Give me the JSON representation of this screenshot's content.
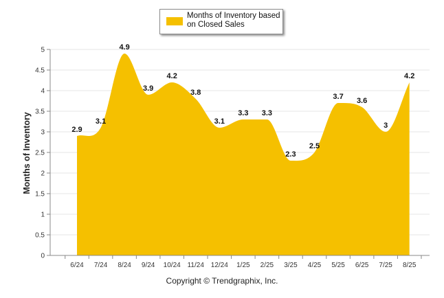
{
  "chart_data": {
    "type": "area",
    "series": [
      {
        "name": "Months of Inventory based on Closed Sales",
        "values": [
          2.9,
          3.1,
          4.9,
          3.9,
          4.2,
          3.8,
          3.1,
          3.3,
          3.3,
          2.3,
          2.5,
          3.7,
          3.6,
          3,
          4.2
        ]
      }
    ],
    "categories": [
      "6/24",
      "7/24",
      "8/24",
      "9/24",
      "10/24",
      "11/24",
      "12/24",
      "1/25",
      "2/25",
      "3/25",
      "4/25",
      "5/25",
      "6/25",
      "7/25",
      "8/25"
    ],
    "data_labels": [
      "2.9",
      "3.1",
      "4.9",
      "3.9",
      "4.2",
      "3.8",
      "3.1",
      "3.3",
      "3.3",
      "2.3",
      "2.5",
      "3.7",
      "3.6",
      "3",
      "4.2"
    ],
    "ylabel": "Months of Inventory",
    "xlabel": "",
    "ylim": [
      0,
      5
    ],
    "yticks": [
      "0",
      "0.5",
      "1",
      "1.5",
      "2",
      "2.5",
      "3",
      "3.5",
      "4",
      "4.5",
      "5"
    ],
    "grid": true,
    "legend_position": "top-center",
    "colors": {
      "series": "#f5c000",
      "grid": "#e6e6e6",
      "axis": "#888888"
    }
  },
  "legend": {
    "label": "Months of Inventory based on Closed Sales"
  },
  "footer": {
    "copyright": "Copyright © Trendgraphix, Inc."
  }
}
